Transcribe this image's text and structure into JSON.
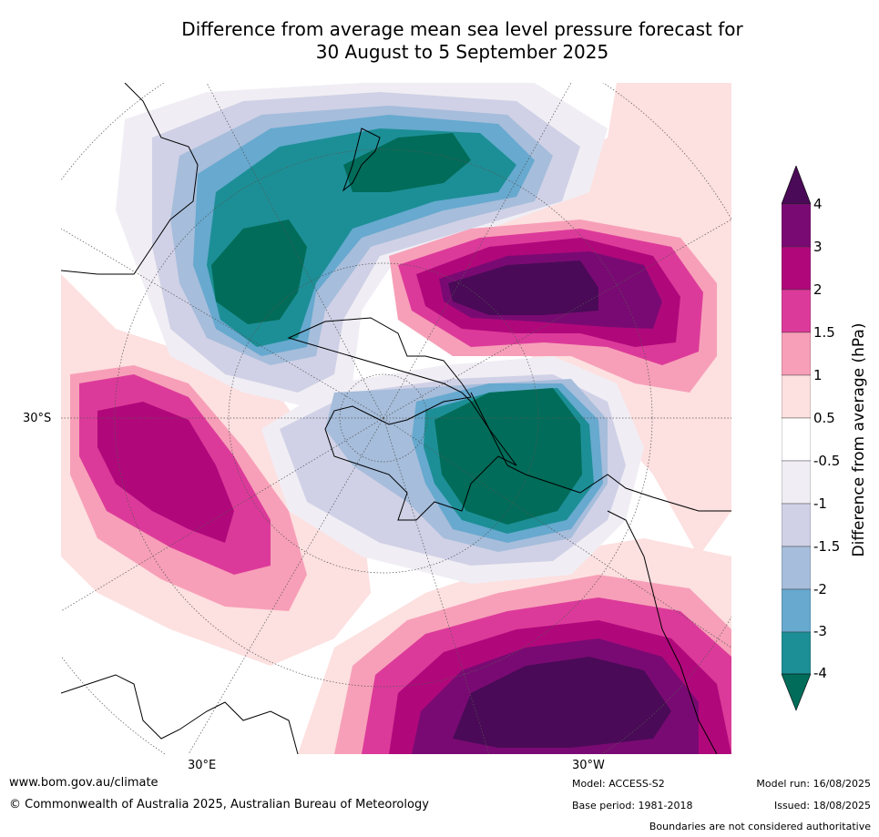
{
  "title_line1": "Difference from average mean sea level pressure forecast for",
  "title_line2": "30 August to 5 September 2025",
  "map": {
    "projection": "south-polar-stereographic",
    "lat_label": "30°S",
    "lon_label_east": "30°E",
    "lon_label_west": "30°W"
  },
  "colorbar": {
    "title": "Difference from average (hPa)",
    "ticks": [
      "4",
      "3",
      "2",
      "1.5",
      "1",
      "0.5",
      "-0.5",
      "-1",
      "-1.5",
      "-2",
      "-3",
      "-4"
    ],
    "colors": {
      "above4": "#4a0a57",
      "c3_4": "#7a0a73",
      "c2_3": "#b0087b",
      "c15_2": "#dc3a9a",
      "c1_15": "#f79fb8",
      "c05_1": "#fde0e0",
      "c0": "#ffffff",
      "cm05_m1": "#f0eef4",
      "cm1_m15": "#d0d1e6",
      "cm15_m2": "#a6bddb",
      "cm2_m3": "#67a9cf",
      "cm3_m4": "#1c8f96",
      "below_m4": "#016c59"
    }
  },
  "footer": {
    "website": "www.bom.gov.au/climate",
    "copyright": "© Commonwealth of Australia 2025, Australian Bureau of Meteorology",
    "model": "Model: ACCESS-S2",
    "base_period": "Base period: 1981-2018",
    "model_run": "Model run: 16/08/2025",
    "issued": "Issued: 18/08/2025",
    "disclaimer": "Boundaries are not considered authoritative"
  }
}
